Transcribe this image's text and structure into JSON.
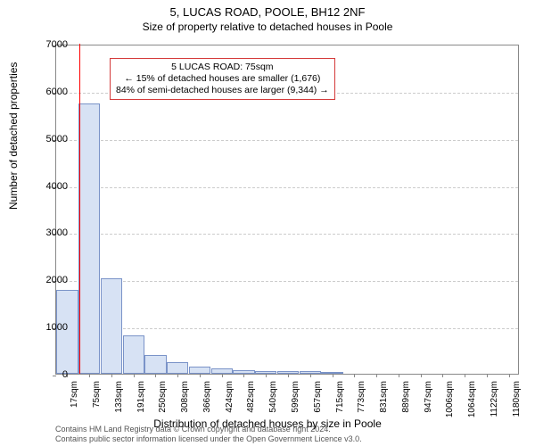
{
  "title_main": "5, LUCAS ROAD, POOLE, BH12 2NF",
  "title_sub": "Size of property relative to detached houses in Poole",
  "ylabel": "Number of detached properties",
  "xlabel": "Distribution of detached houses by size in Poole",
  "chart": {
    "type": "histogram",
    "ylim": [
      0,
      7000
    ],
    "ytick_step": 1000,
    "bar_fill": "#d7e2f4",
    "bar_border": "#7a93c8",
    "grid_color": "#cccccc",
    "axis_color": "#888888",
    "background_color": "#ffffff",
    "highlight_color": "#ff0000",
    "highlight_bin_index": 1,
    "xtick_labels": [
      "17sqm",
      "75sqm",
      "133sqm",
      "191sqm",
      "250sqm",
      "308sqm",
      "366sqm",
      "424sqm",
      "482sqm",
      "540sqm",
      "599sqm",
      "657sqm",
      "715sqm",
      "773sqm",
      "831sqm",
      "889sqm",
      "947sqm",
      "1006sqm",
      "1064sqm",
      "1122sqm",
      "1180sqm"
    ],
    "bar_values": [
      1780,
      5730,
      2020,
      810,
      400,
      240,
      150,
      110,
      80,
      60,
      55,
      50,
      45,
      0,
      0,
      0,
      0,
      0,
      0,
      0,
      0
    ]
  },
  "annotation": {
    "line1": "5 LUCAS ROAD: 75sqm",
    "line2": "← 15% of detached houses are smaller (1,676)",
    "line3": "84% of semi-detached houses are larger (9,344) →",
    "border_color": "#d43a3a",
    "fontsize": 10.5
  },
  "footer": {
    "line1": "Contains HM Land Registry data © Crown copyright and database right 2024.",
    "line2": "Contains public sector information licensed under the Open Government Licence v3.0.",
    "color": "#555555",
    "fontsize": 9
  }
}
